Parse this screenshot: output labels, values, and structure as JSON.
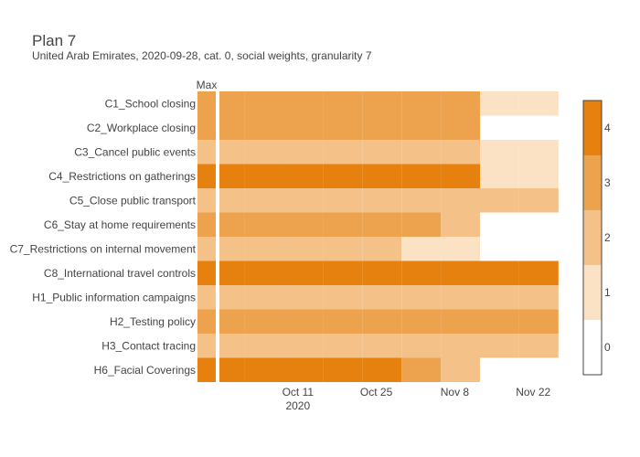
{
  "chart_data": {
    "type": "heatmap",
    "title": "Plan 7",
    "subtitle": "United Arab Emirates, 2020-09-28, cat. 0, social weights, granularity 7",
    "max_label": "Max",
    "xaxis": {
      "ticks": [
        {
          "date": "2020-10-11",
          "label": "Oct 11",
          "sublabel": "2020"
        },
        {
          "date": "2020-10-25",
          "label": "Oct 25",
          "sublabel": ""
        },
        {
          "date": "2020-11-08",
          "label": "Nov 8",
          "sublabel": ""
        },
        {
          "date": "2020-11-22",
          "label": "Nov 22",
          "sublabel": ""
        }
      ],
      "range": [
        "2020-09-27",
        "2020-11-28"
      ]
    },
    "plan_columns": [
      "2020-09-28",
      "2020-10-05",
      "2020-10-12",
      "2020-10-19",
      "2020-10-26",
      "2020-11-02",
      "2020-11-09",
      "2020-11-16",
      "2020-11-23"
    ],
    "rows": [
      {
        "name": "C1_School closing",
        "max": 3,
        "values": [
          3,
          3,
          3,
          3,
          3,
          3,
          3,
          1,
          1
        ]
      },
      {
        "name": "C2_Workplace closing",
        "max": 3,
        "values": [
          3,
          3,
          3,
          3,
          3,
          3,
          3,
          null,
          null
        ]
      },
      {
        "name": "C3_Cancel public events",
        "max": 2,
        "values": [
          2,
          2,
          2,
          2,
          2,
          2,
          2,
          1,
          1
        ]
      },
      {
        "name": "C4_Restrictions on gatherings",
        "max": 4,
        "values": [
          4,
          4,
          4,
          4,
          4,
          4,
          4,
          1,
          1
        ]
      },
      {
        "name": "C5_Close public transport",
        "max": 2,
        "values": [
          2,
          2,
          2,
          2,
          2,
          2,
          2,
          2,
          2
        ]
      },
      {
        "name": "C6_Stay at home requirements",
        "max": 3,
        "values": [
          3,
          3,
          3,
          3,
          3,
          3,
          2,
          null,
          null
        ]
      },
      {
        "name": "C7_Restrictions on internal movement",
        "max": 2,
        "values": [
          2,
          2,
          2,
          2,
          2,
          1,
          1,
          null,
          null
        ]
      },
      {
        "name": "C8_International travel controls",
        "max": 4,
        "values": [
          4,
          4,
          4,
          4,
          4,
          4,
          4,
          4,
          4
        ]
      },
      {
        "name": "H1_Public information campaigns",
        "max": 2,
        "values": [
          2,
          2,
          2,
          2,
          2,
          2,
          2,
          2,
          2
        ]
      },
      {
        "name": "H2_Testing policy",
        "max": 3,
        "values": [
          3,
          3,
          3,
          3,
          3,
          3,
          3,
          3,
          3
        ]
      },
      {
        "name": "H3_Contact tracing",
        "max": 2,
        "values": [
          2,
          2,
          2,
          2,
          2,
          2,
          2,
          2,
          2
        ]
      },
      {
        "name": "H6_Facial Coverings",
        "max": 4,
        "values": [
          4,
          4,
          4,
          4,
          4,
          3,
          2,
          null,
          null
        ]
      }
    ],
    "colorscale": {
      "levels": [
        0,
        1,
        2,
        3,
        4
      ],
      "colors": [
        "#ffffff",
        "#fbe2c4",
        "#f4c189",
        "#eda34e",
        "#e6810f"
      ],
      "tick_labels": [
        "0",
        "1",
        "2",
        "3",
        "4"
      ]
    },
    "grid": false,
    "legend": "right colorbar"
  }
}
